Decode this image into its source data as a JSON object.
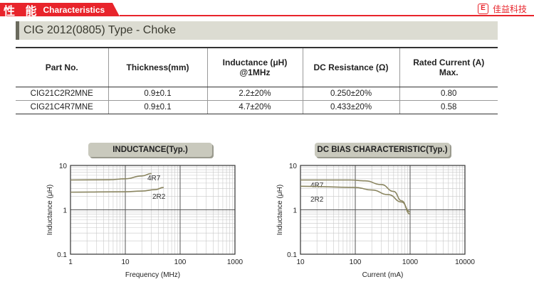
{
  "header": {
    "section_cn": "性 能",
    "section_en": "Characteristics",
    "brand_logo": "E",
    "brand_name": "佳益科技",
    "accent_color": "#e8242b"
  },
  "title": "CIG 2012(0805) Type - Choke",
  "table": {
    "columns": [
      "Part No.",
      "Thickness(mm)",
      "Inductance (μH)\n@1MHz",
      "DC Resistance (Ω)",
      "Rated Current (A)\nMax."
    ],
    "rows": [
      [
        "CIG21C2R2MNE",
        "0.9±0.1",
        "2.2±20%",
        "0.250±20%",
        "0.80"
      ],
      [
        "CIG21C4R7MNE",
        "0.9±0.1",
        "4.7±20%",
        "0.433±20%",
        "0.58"
      ]
    ]
  },
  "chart_data": [
    {
      "type": "line",
      "title": "INDUCTANCE(Typ.)",
      "xlabel": "Frequency (MHz)",
      "ylabel": "Inductance (μH)",
      "xscale": "log",
      "yscale": "log",
      "xlim": [
        1,
        1000
      ],
      "ylim": [
        0.1,
        10
      ],
      "xticks": [
        "1",
        "10",
        "100",
        "1000"
      ],
      "yticks": [
        "10",
        "1",
        "0.1"
      ],
      "grid": true,
      "series": [
        {
          "name": "4R7",
          "points": [
            [
              1,
              4.7
            ],
            [
              5,
              4.75
            ],
            [
              10,
              5.0
            ],
            [
              20,
              5.8
            ],
            [
              30,
              6.6
            ]
          ]
        },
        {
          "name": "2R2",
          "points": [
            [
              1,
              2.5
            ],
            [
              10,
              2.55
            ],
            [
              20,
              2.65
            ],
            [
              35,
              2.85
            ],
            [
              50,
              3.2
            ]
          ]
        }
      ]
    },
    {
      "type": "line",
      "title": "DC BIAS CHARACTERISTIC(Typ.)",
      "xlabel": "Current (mA)",
      "ylabel": "Inductance (μH)",
      "xscale": "log",
      "yscale": "log",
      "xlim": [
        10,
        10000
      ],
      "ylim": [
        0.1,
        10
      ],
      "xticks": [
        "10",
        "100",
        "1000",
        "10000"
      ],
      "yticks": [
        "10",
        "1",
        "0.1"
      ],
      "grid": true,
      "series": [
        {
          "name": "4R7",
          "points": [
            [
              10,
              4.7
            ],
            [
              80,
              4.7
            ],
            [
              150,
              4.5
            ],
            [
              300,
              3.7
            ],
            [
              500,
              2.6
            ],
            [
              700,
              1.6
            ],
            [
              1000,
              0.8
            ]
          ]
        },
        {
          "name": "2R2",
          "points": [
            [
              10,
              3.4
            ],
            [
              100,
              3.2
            ],
            [
              200,
              2.8
            ],
            [
              400,
              2.2
            ],
            [
              700,
              1.5
            ],
            [
              1000,
              0.9
            ]
          ]
        }
      ]
    }
  ]
}
